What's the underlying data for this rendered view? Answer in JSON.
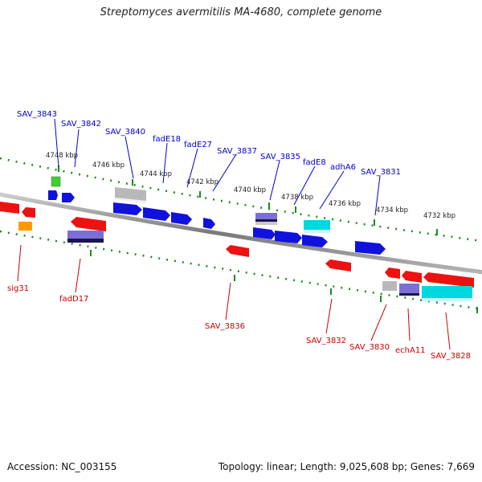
{
  "header": {
    "title": "Streptomyces avermitilis MA-4680, complete genome"
  },
  "footer": {
    "accession": "Accession: NC_003155",
    "summary": "Topology: linear; Length: 9,025,608 bp; Genes: 7,669"
  },
  "colors": {
    "backbone": "#8c8c8c",
    "ruler_ticks": "#1e8a1e",
    "forward_label": "#0000cc",
    "reverse_label": "#cc0000",
    "red": "#ee1111",
    "blue": "#1111dd",
    "gray": "#b8b8b8",
    "cyan": "#00d8e0",
    "slate": "#7b6fd6",
    "green": "#44cc33",
    "orange": "#ff9900"
  },
  "ruler": {
    "coordinates": [
      "4748 kbp",
      "4746 kbp",
      "4744 kbp",
      "4742 kbp",
      "4740 kbp",
      "4738 kbp",
      "4736 kbp",
      "4734 kbp",
      "4732 kbp"
    ]
  },
  "gene_labels": {
    "forward": [
      "SAV_3843",
      "SAV_3842",
      "SAV_3840",
      "fadE18",
      "fadE27",
      "SAV_3837",
      "SAV_3835",
      "fadE8",
      "adhA6",
      "SAV_3831"
    ],
    "reverse": [
      "sig31",
      "fadD17",
      "SAV_3836",
      "SAV_3832",
      "SAV_3830",
      "echA11",
      "SAV_3828"
    ]
  }
}
